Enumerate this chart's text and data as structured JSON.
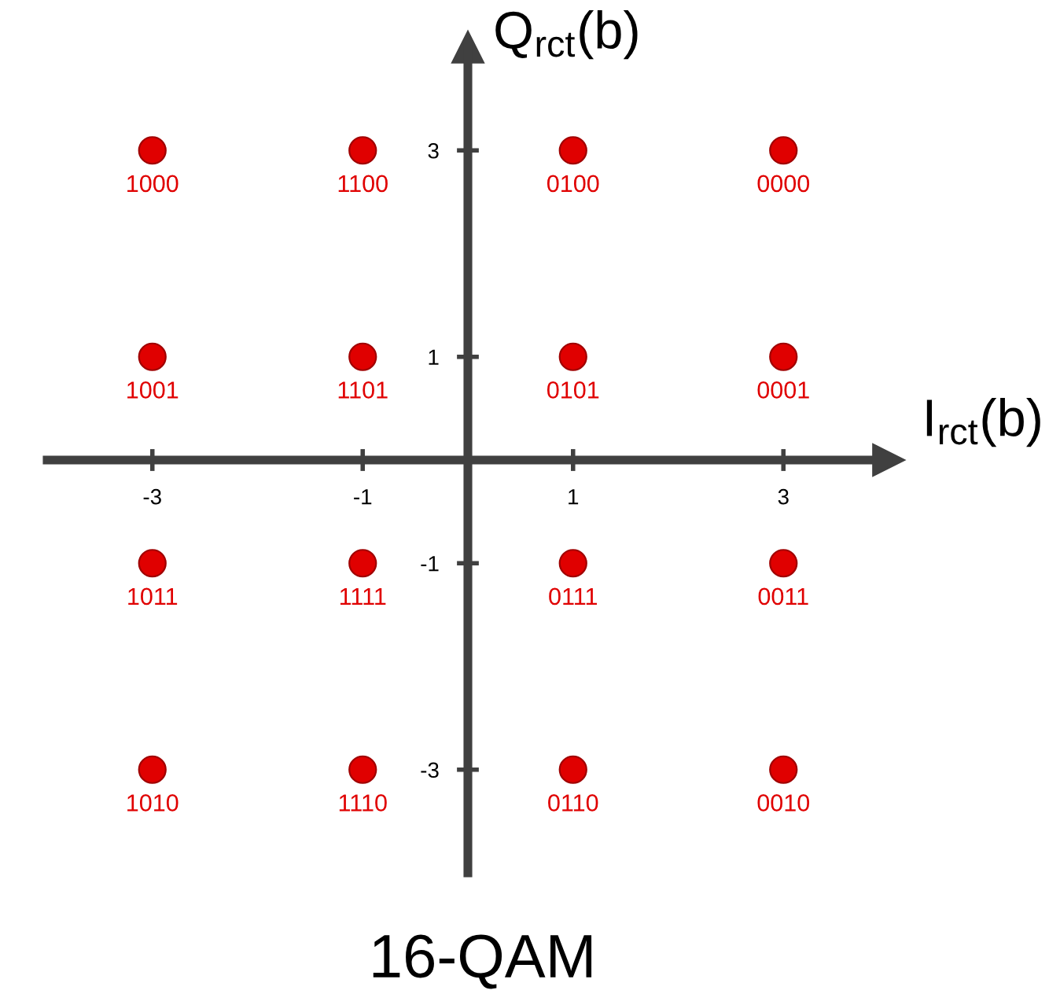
{
  "chart_data": {
    "type": "scatter",
    "title": "16-QAM",
    "xlabel": "I$_{rct}$(b)",
    "ylabel": "Q$_{rct}$(b)",
    "x": [
      -3,
      -1,
      1,
      3,
      -3,
      -1,
      1,
      3,
      -3,
      -1,
      1,
      3,
      -3,
      -1,
      1,
      3
    ],
    "series": [
      {
        "color": "#e00000",
        "values": [
          3,
          3,
          3,
          3,
          1,
          1,
          1,
          1,
          -1,
          -1,
          -1,
          -1,
          -3,
          -3,
          -3,
          -3
        ]
      }
    ],
    "annotations": [
      {
        "text": "1000",
        "x": -3,
        "y": 3
      },
      {
        "text": "1100",
        "x": -1,
        "y": 3
      },
      {
        "text": "0100",
        "x": 1,
        "y": 3
      },
      {
        "text": "0000",
        "x": 3,
        "y": 3
      },
      {
        "text": "1001",
        "x": -3,
        "y": 1
      },
      {
        "text": "1101",
        "x": -1,
        "y": 1
      },
      {
        "text": "0101",
        "x": 1,
        "y": 1
      },
      {
        "text": "0001",
        "x": 3,
        "y": 1
      },
      {
        "text": "1011",
        "x": -3,
        "y": -1
      },
      {
        "text": "1111",
        "x": -1,
        "y": -1
      },
      {
        "text": "0111",
        "x": 1,
        "y": -1
      },
      {
        "text": "0011",
        "x": 3,
        "y": -1
      },
      {
        "text": "1010",
        "x": -3,
        "y": -3
      },
      {
        "text": "1110",
        "x": -1,
        "y": -3
      },
      {
        "text": "0110",
        "x": 1,
        "y": -3
      },
      {
        "text": "0010",
        "x": 3,
        "y": -3
      }
    ],
    "xlim": [
      -4,
      4
    ],
    "ylim": [
      -4,
      4
    ],
    "xticks": [
      -3,
      -1,
      1,
      3
    ],
    "yticks": [
      -3,
      -1,
      1,
      3
    ],
    "marker": "circle",
    "grid": false,
    "legend": false
  }
}
